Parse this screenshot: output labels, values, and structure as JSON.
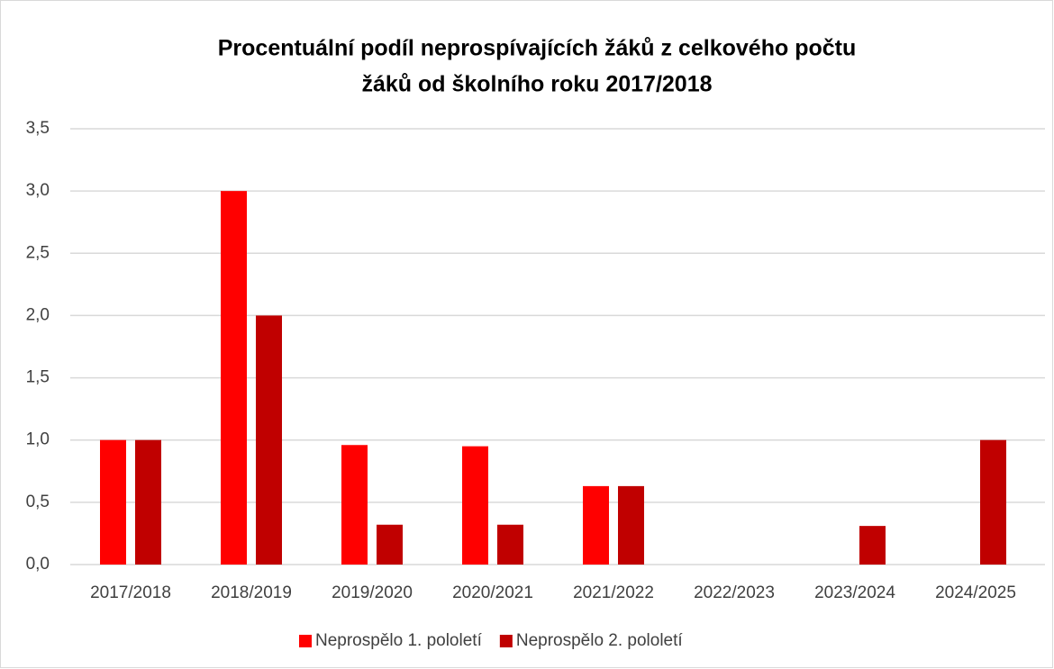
{
  "chart_data": {
    "type": "bar",
    "title": [
      "Procentuální podíl neprospívajících žáků z celkového počtu",
      "žáků od školního roku 2017/2018"
    ],
    "categories": [
      "2017/2018",
      "2018/2019",
      "2019/2020",
      "2020/2021",
      "2021/2022",
      "2022/2023",
      "2023/2024",
      "2024/2025"
    ],
    "series": [
      {
        "name": "Neprospělo 1. pololetí",
        "color": "#ff0000",
        "values": [
          1.0,
          3.0,
          0.96,
          0.95,
          0.63,
          0,
          0,
          0
        ]
      },
      {
        "name": "Neprospělo 2. pololetí",
        "color": "#c00000",
        "values": [
          1.0,
          2.0,
          0.32,
          0.32,
          0.63,
          0,
          0.31,
          1.0
        ]
      }
    ],
    "ylim": [
      0,
      3.5
    ],
    "yticks": [
      {
        "value": 0,
        "label": "0,0"
      },
      {
        "value": 0.5,
        "label": "0,5"
      },
      {
        "value": 1,
        "label": "1,0"
      },
      {
        "value": 1.5,
        "label": "1,5"
      },
      {
        "value": 2,
        "label": "2,0"
      },
      {
        "value": 2.5,
        "label": "2,5"
      },
      {
        "value": 3,
        "label": "3,0"
      },
      {
        "value": 3.5,
        "label": "3,5"
      }
    ],
    "grid": true,
    "legend": "bottom"
  }
}
